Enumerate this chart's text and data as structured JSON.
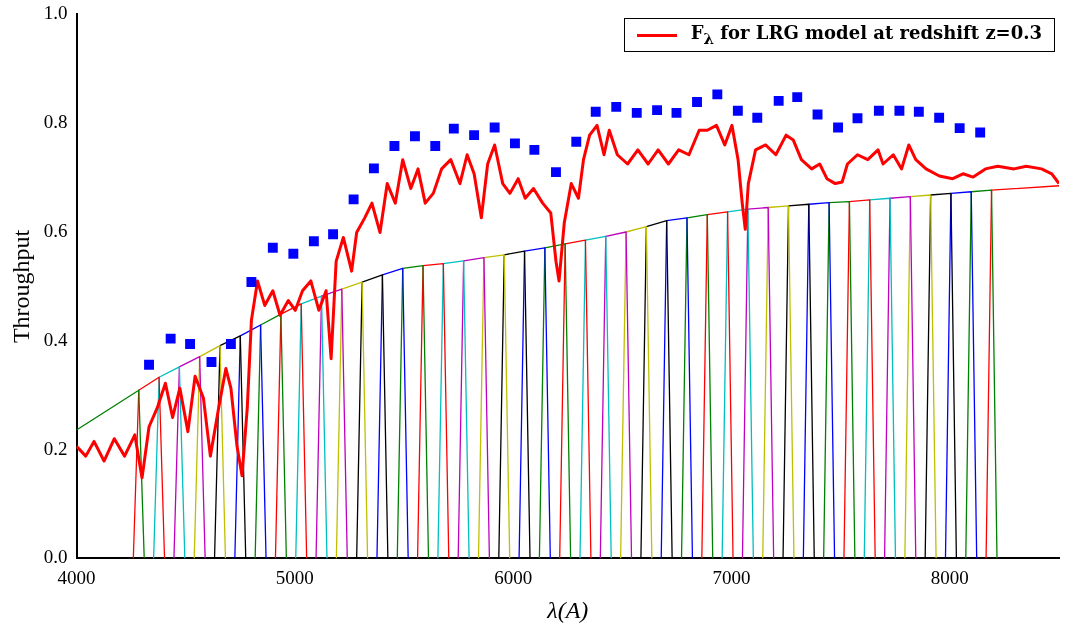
{
  "chart_data": {
    "type": "line",
    "xlabel": "λ(A)",
    "ylabel": "Throughput",
    "legend": "top right",
    "xlim": [
      4000,
      8500
    ],
    "ylim": [
      0,
      1
    ],
    "xticks": [
      4000,
      5000,
      6000,
      7000,
      8000
    ],
    "yticks": [
      {
        "value": 0,
        "label": "0.0"
      },
      {
        "value": 0.2,
        "label": "0.2"
      },
      {
        "value": 0.4,
        "label": "0.4"
      },
      {
        "value": 0.6,
        "label": "0.6"
      },
      {
        "value": 0.8,
        "label": "0.8"
      },
      {
        "value": 1,
        "label": "1.0"
      }
    ],
    "series": [
      {
        "type": "scatter",
        "marker": "square",
        "color": "#0000ff",
        "x": [
          4332,
          4431,
          4520,
          4618,
          4707,
          4801,
          4899,
          4993,
          5087,
          5175,
          5269,
          5362,
          5456,
          5550,
          5643,
          5728,
          5821,
          5915,
          6008,
          6097,
          6196,
          6289,
          6378,
          6472,
          6566,
          6659,
          6748,
          6842,
          6935,
          7029,
          7118,
          7216,
          7301,
          7394,
          7488,
          7577,
          7675,
          7769,
          7858,
          7951,
          8045,
          8139
        ],
        "values": [
          0.356,
          0.404,
          0.394,
          0.361,
          0.394,
          0.508,
          0.571,
          0.56,
          0.583,
          0.596,
          0.66,
          0.717,
          0.758,
          0.776,
          0.758,
          0.79,
          0.778,
          0.792,
          0.763,
          0.751,
          0.71,
          0.766,
          0.821,
          0.83,
          0.819,
          0.824,
          0.819,
          0.839,
          0.853,
          0.823,
          0.81,
          0.841,
          0.848,
          0.816,
          0.792,
          0.809,
          0.823,
          0.823,
          0.821,
          0.81,
          0.791,
          0.783
        ]
      },
      {
        "name": "F$_{λ}$ for LRG model at redshift z=0.3",
        "color": "#ff0000",
        "x": [
          4000,
          4042,
          4080,
          4126,
          4173,
          4220,
          4267,
          4300,
          4332,
          4370,
          4407,
          4440,
          4473,
          4510,
          4543,
          4581,
          4613,
          4651,
          4684,
          4707,
          4735,
          4758,
          4782,
          4801,
          4829,
          4862,
          4899,
          4932,
          4970,
          5002,
          5035,
          5073,
          5110,
          5143,
          5166,
          5189,
          5222,
          5260,
          5283,
          5320,
          5353,
          5390,
          5423,
          5460,
          5494,
          5531,
          5564,
          5597,
          5634,
          5672,
          5714,
          5756,
          5789,
          5821,
          5854,
          5883,
          5915,
          5952,
          5985,
          6023,
          6055,
          6093,
          6135,
          6172,
          6196,
          6210,
          6234,
          6266,
          6299,
          6322,
          6350,
          6384,
          6416,
          6440,
          6477,
          6524,
          6571,
          6618,
          6664,
          6711,
          6758,
          6805,
          6852,
          6889,
          6931,
          6969,
          7002,
          7030,
          7049,
          7063,
          7077,
          7110,
          7156,
          7203,
          7250,
          7283,
          7320,
          7367,
          7404,
          7437,
          7475,
          7507,
          7531,
          7577,
          7624,
          7671,
          7694,
          7741,
          7779,
          7812,
          7844,
          7891,
          7952,
          8013,
          8060,
          8107,
          8163,
          8219,
          8294,
          8350,
          8420,
          8467,
          8500
        ],
        "values": [
          0.206,
          0.188,
          0.215,
          0.179,
          0.22,
          0.188,
          0.227,
          0.148,
          0.242,
          0.277,
          0.322,
          0.259,
          0.313,
          0.233,
          0.335,
          0.295,
          0.188,
          0.277,
          0.349,
          0.313,
          0.206,
          0.152,
          0.277,
          0.438,
          0.51,
          0.465,
          0.492,
          0.447,
          0.474,
          0.456,
          0.492,
          0.51,
          0.456,
          0.492,
          0.367,
          0.546,
          0.59,
          0.528,
          0.599,
          0.626,
          0.653,
          0.599,
          0.689,
          0.653,
          0.733,
          0.68,
          0.716,
          0.653,
          0.671,
          0.716,
          0.733,
          0.689,
          0.742,
          0.707,
          0.626,
          0.725,
          0.76,
          0.689,
          0.671,
          0.698,
          0.662,
          0.68,
          0.653,
          0.635,
          0.546,
          0.51,
          0.617,
          0.689,
          0.662,
          0.733,
          0.778,
          0.796,
          0.742,
          0.787,
          0.742,
          0.725,
          0.751,
          0.725,
          0.751,
          0.725,
          0.751,
          0.742,
          0.787,
          0.787,
          0.796,
          0.76,
          0.796,
          0.733,
          0.653,
          0.605,
          0.689,
          0.751,
          0.76,
          0.742,
          0.778,
          0.769,
          0.733,
          0.716,
          0.725,
          0.698,
          0.689,
          0.692,
          0.725,
          0.742,
          0.733,
          0.751,
          0.725,
          0.742,
          0.716,
          0.76,
          0.733,
          0.716,
          0.703,
          0.698,
          0.707,
          0.701,
          0.716,
          0.721,
          0.716,
          0.721,
          0.716,
          0.707,
          0.689
        ]
      },
      {
        "color": "#008000",
        "x": [
          4000,
          4285,
          4310
        ],
        "values": [
          0.236,
          0.309,
          0
        ]
      },
      {
        "color": "#ff0000",
        "x": [
          4260,
          4285,
          4378,
          4403
        ],
        "values": [
          0,
          0.309,
          0.333,
          0
        ]
      },
      {
        "color": "#00bfbf",
        "x": [
          4353,
          4378,
          4471,
          4496
        ],
        "values": [
          0,
          0.333,
          0.352,
          0
        ]
      },
      {
        "color": "#bf00bf",
        "x": [
          4446,
          4471,
          4564,
          4589
        ],
        "values": [
          0,
          0.352,
          0.371,
          0
        ]
      },
      {
        "color": "#bfbf00",
        "x": [
          4539,
          4564,
          4657,
          4682
        ],
        "values": [
          0,
          0.371,
          0.391,
          0
        ]
      },
      {
        "color": "#000000",
        "x": [
          4632,
          4657,
          4750,
          4775
        ],
        "values": [
          0,
          0.391,
          0.409,
          0
        ]
      },
      {
        "color": "#0000ff",
        "x": [
          4725,
          4750,
          4843,
          4868
        ],
        "values": [
          0,
          0.409,
          0.429,
          0
        ]
      },
      {
        "color": "#008000",
        "x": [
          4818,
          4843,
          4936,
          4961
        ],
        "values": [
          0,
          0.429,
          0.449,
          0
        ]
      },
      {
        "color": "#ff0000",
        "x": [
          4911,
          4936,
          5029,
          5054
        ],
        "values": [
          0,
          0.449,
          0.468,
          0
        ]
      },
      {
        "color": "#00bfbf",
        "x": [
          5004,
          5029,
          5122,
          5147
        ],
        "values": [
          0,
          0.468,
          0.482,
          0
        ]
      },
      {
        "color": "#bf00bf",
        "x": [
          5097,
          5122,
          5215,
          5240
        ],
        "values": [
          0,
          0.482,
          0.495,
          0
        ]
      },
      {
        "color": "#bfbf00",
        "x": [
          5190,
          5215,
          5308,
          5333
        ],
        "values": [
          0,
          0.495,
          0.508,
          0
        ]
      },
      {
        "color": "#000000",
        "x": [
          5283,
          5308,
          5401,
          5426
        ],
        "values": [
          0,
          0.508,
          0.521,
          0
        ]
      },
      {
        "color": "#0000ff",
        "x": [
          5376,
          5401,
          5494,
          5519
        ],
        "values": [
          0,
          0.521,
          0.533,
          0
        ]
      },
      {
        "color": "#008000",
        "x": [
          5469,
          5494,
          5587,
          5612
        ],
        "values": [
          0,
          0.533,
          0.538,
          0
        ]
      },
      {
        "color": "#ff0000",
        "x": [
          5562,
          5587,
          5680,
          5705
        ],
        "values": [
          0,
          0.538,
          0.542,
          0
        ]
      },
      {
        "color": "#00bfbf",
        "x": [
          5655,
          5680,
          5773,
          5798
        ],
        "values": [
          0,
          0.542,
          0.547,
          0
        ]
      },
      {
        "color": "#bf00bf",
        "x": [
          5748,
          5773,
          5866,
          5891
        ],
        "values": [
          0,
          0.547,
          0.553,
          0
        ]
      },
      {
        "color": "#bfbf00",
        "x": [
          5841,
          5866,
          5959,
          5984
        ],
        "values": [
          0,
          0.553,
          0.558,
          0
        ]
      },
      {
        "color": "#000000",
        "x": [
          5934,
          5959,
          6052,
          6077
        ],
        "values": [
          0,
          0.558,
          0.565,
          0
        ]
      },
      {
        "color": "#0000ff",
        "x": [
          6027,
          6052,
          6145,
          6170
        ],
        "values": [
          0,
          0.565,
          0.571,
          0
        ]
      },
      {
        "color": "#008000",
        "x": [
          6120,
          6145,
          6238,
          6263
        ],
        "values": [
          0,
          0.571,
          0.578,
          0
        ]
      },
      {
        "color": "#ff0000",
        "x": [
          6213,
          6238,
          6331,
          6356
        ],
        "values": [
          0,
          0.578,
          0.585,
          0
        ]
      },
      {
        "color": "#00bfbf",
        "x": [
          6306,
          6331,
          6424,
          6449
        ],
        "values": [
          0,
          0.585,
          0.592,
          0
        ]
      },
      {
        "color": "#bf00bf",
        "x": [
          6399,
          6424,
          6517,
          6542
        ],
        "values": [
          0,
          0.592,
          0.6,
          0
        ]
      },
      {
        "color": "#bfbf00",
        "x": [
          6492,
          6517,
          6610,
          6635
        ],
        "values": [
          0,
          0.6,
          0.61,
          0
        ]
      },
      {
        "color": "#000000",
        "x": [
          6585,
          6610,
          6703,
          6728
        ],
        "values": [
          0,
          0.61,
          0.621,
          0
        ]
      },
      {
        "color": "#0000ff",
        "x": [
          6678,
          6703,
          6796,
          6821
        ],
        "values": [
          0,
          0.621,
          0.626,
          0
        ]
      },
      {
        "color": "#008000",
        "x": [
          6771,
          6796,
          6889,
          6914
        ],
        "values": [
          0,
          0.626,
          0.632,
          0
        ]
      },
      {
        "color": "#ff0000",
        "x": [
          6864,
          6889,
          6982,
          7007
        ],
        "values": [
          0,
          0.632,
          0.637,
          0
        ]
      },
      {
        "color": "#00bfbf",
        "x": [
          6957,
          6982,
          7075,
          7100
        ],
        "values": [
          0,
          0.637,
          0.642,
          0
        ]
      },
      {
        "color": "#bf00bf",
        "x": [
          7050,
          7075,
          7168,
          7193
        ],
        "values": [
          0,
          0.642,
          0.645,
          0
        ]
      },
      {
        "color": "#bfbf00",
        "x": [
          7143,
          7168,
          7261,
          7286
        ],
        "values": [
          0,
          0.645,
          0.648,
          0
        ]
      },
      {
        "color": "#000000",
        "x": [
          7236,
          7261,
          7354,
          7379
        ],
        "values": [
          0,
          0.648,
          0.651,
          0
        ]
      },
      {
        "color": "#0000ff",
        "x": [
          7329,
          7354,
          7447,
          7472
        ],
        "values": [
          0,
          0.651,
          0.654,
          0
        ]
      },
      {
        "color": "#008000",
        "x": [
          7422,
          7447,
          7540,
          7565
        ],
        "values": [
          0,
          0.654,
          0.656,
          0
        ]
      },
      {
        "color": "#ff0000",
        "x": [
          7515,
          7540,
          7633,
          7658
        ],
        "values": [
          0,
          0.656,
          0.659,
          0
        ]
      },
      {
        "color": "#00bfbf",
        "x": [
          7608,
          7633,
          7726,
          7751
        ],
        "values": [
          0,
          0.659,
          0.662,
          0
        ]
      },
      {
        "color": "#bf00bf",
        "x": [
          7701,
          7726,
          7819,
          7844
        ],
        "values": [
          0,
          0.662,
          0.665,
          0
        ]
      },
      {
        "color": "#bfbf00",
        "x": [
          7794,
          7819,
          7912,
          7937
        ],
        "values": [
          0,
          0.665,
          0.668,
          0
        ]
      },
      {
        "color": "#000000",
        "x": [
          7887,
          7912,
          8005,
          8030
        ],
        "values": [
          0,
          0.668,
          0.671,
          0
        ]
      },
      {
        "color": "#0000ff",
        "x": [
          7980,
          8005,
          8098,
          8123
        ],
        "values": [
          0,
          0.671,
          0.674,
          0
        ]
      },
      {
        "color": "#008000",
        "x": [
          8073,
          8098,
          8191,
          8216
        ],
        "values": [
          0,
          0.674,
          0.677,
          0
        ]
      },
      {
        "color": "#ff0000",
        "x": [
          8166,
          8191,
          8500
        ],
        "values": [
          0,
          0.677,
          0.685
        ]
      }
    ]
  }
}
